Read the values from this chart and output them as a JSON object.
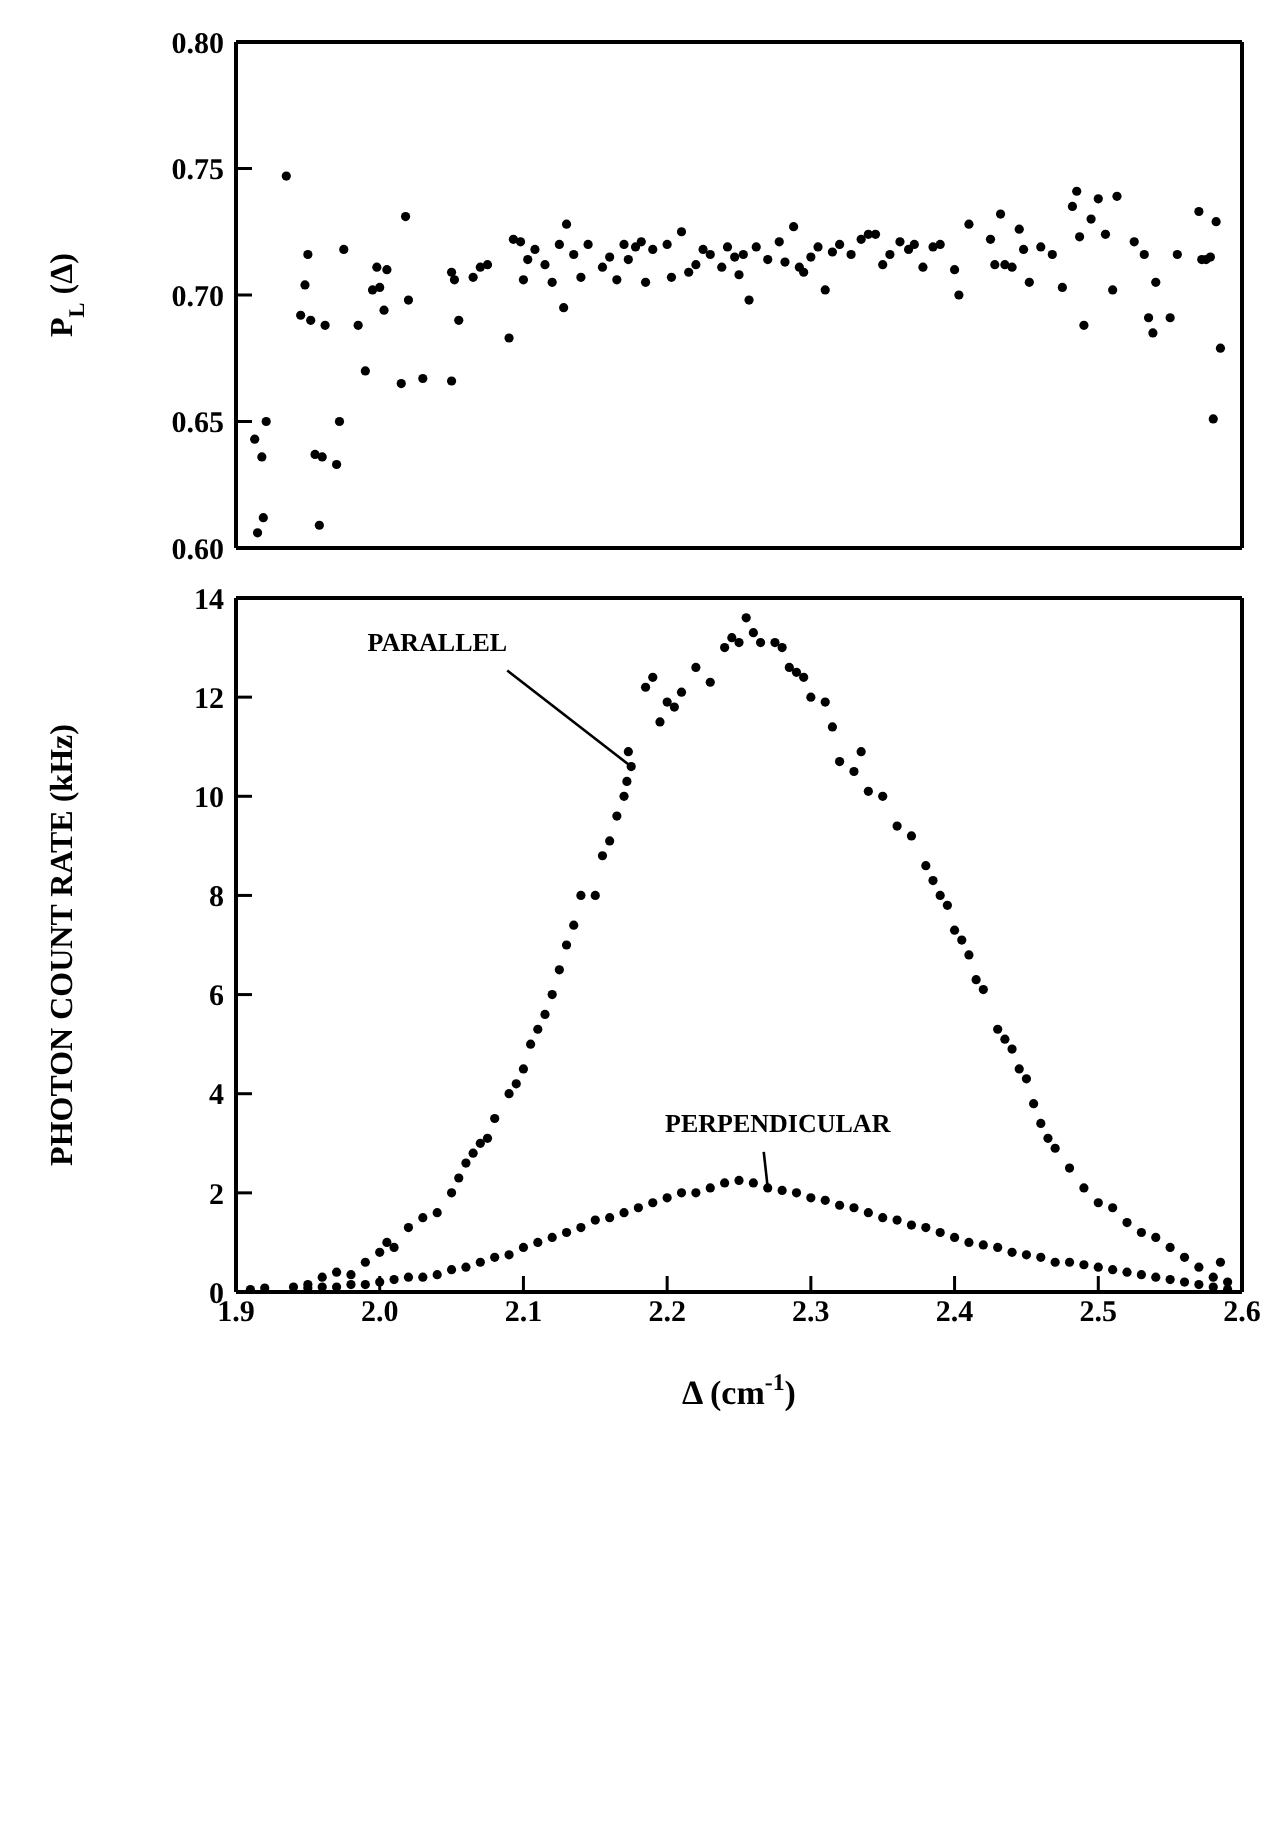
{
  "chart_data": [
    {
      "type": "scatter",
      "ylabel": "P$_{L}$ (Δ)",
      "xlim": [
        1.9,
        2.6
      ],
      "xticks": [
        1.9,
        2.0,
        2.1,
        2.2,
        2.3,
        2.4,
        2.5,
        2.6
      ],
      "ylim": [
        0.6,
        0.8
      ],
      "yticks": [
        {
          "value": 0.6,
          "label": "0.60"
        },
        0.65,
        {
          "value": 0.7,
          "label": "0.70"
        },
        0.75,
        {
          "value": 0.8,
          "label": "0.80"
        }
      ],
      "tick_labels": "y",
      "marker": "circle",
      "series": [
        {
          "color": "#000000",
          "x": [
            1.913,
            1.915,
            1.918,
            1.919,
            1.921,
            1.935,
            1.945,
            1.948,
            1.95,
            1.952,
            1.955,
            1.958,
            1.96,
            1.962,
            1.97,
            1.972,
            1.975,
            1.985,
            1.99,
            1.995,
            1.998,
            2.0,
            2.003,
            2.005,
            2.015,
            2.018,
            2.02,
            2.03,
            2.05,
            2.05,
            2.052,
            2.055,
            2.065,
            2.07,
            2.075,
            2.09,
            2.093,
            2.098,
            2.1,
            2.103,
            2.108,
            2.115,
            2.12,
            2.125,
            2.128,
            2.13,
            2.135,
            2.14,
            2.145,
            2.155,
            2.16,
            2.165,
            2.17,
            2.173,
            2.178,
            2.182,
            2.185,
            2.19,
            2.2,
            2.203,
            2.21,
            2.215,
            2.22,
            2.225,
            2.23,
            2.238,
            2.242,
            2.247,
            2.25,
            2.253,
            2.257,
            2.262,
            2.27,
            2.278,
            2.282,
            2.288,
            2.292,
            2.295,
            2.3,
            2.305,
            2.31,
            2.315,
            2.32,
            2.328,
            2.335,
            2.34,
            2.345,
            2.35,
            2.355,
            2.362,
            2.368,
            2.372,
            2.378,
            2.385,
            2.39,
            2.4,
            2.403,
            2.41,
            2.425,
            2.428,
            2.432,
            2.435,
            2.44,
            2.445,
            2.448,
            2.452,
            2.46,
            2.468,
            2.475,
            2.482,
            2.485,
            2.487,
            2.49,
            2.495,
            2.5,
            2.505,
            2.51,
            2.513,
            2.525,
            2.532,
            2.535,
            2.538,
            2.54,
            2.55,
            2.555,
            2.57,
            2.572,
            2.575,
            2.578,
            2.58,
            2.582,
            2.585
          ],
          "values": [
            0.643,
            0.606,
            0.636,
            0.612,
            0.65,
            0.747,
            0.692,
            0.704,
            0.716,
            0.69,
            0.637,
            0.609,
            0.636,
            0.688,
            0.633,
            0.65,
            0.718,
            0.688,
            0.67,
            0.702,
            0.711,
            0.703,
            0.694,
            0.71,
            0.665,
            0.731,
            0.698,
            0.667,
            0.666,
            0.709,
            0.706,
            0.69,
            0.707,
            0.711,
            0.712,
            0.683,
            0.722,
            0.721,
            0.706,
            0.714,
            0.718,
            0.712,
            0.705,
            0.72,
            0.695,
            0.728,
            0.716,
            0.707,
            0.72,
            0.711,
            0.715,
            0.706,
            0.72,
            0.714,
            0.719,
            0.721,
            0.705,
            0.718,
            0.72,
            0.707,
            0.725,
            0.709,
            0.712,
            0.718,
            0.716,
            0.711,
            0.719,
            0.715,
            0.708,
            0.716,
            0.698,
            0.719,
            0.714,
            0.721,
            0.713,
            0.727,
            0.711,
            0.709,
            0.715,
            0.719,
            0.702,
            0.717,
            0.72,
            0.716,
            0.722,
            0.724,
            0.724,
            0.712,
            0.716,
            0.721,
            0.718,
            0.72,
            0.711,
            0.719,
            0.72,
            0.71,
            0.7,
            0.728,
            0.722,
            0.712,
            0.732,
            0.712,
            0.711,
            0.726,
            0.718,
            0.705,
            0.719,
            0.716,
            0.703,
            0.735,
            0.741,
            0.723,
            0.688,
            0.73,
            0.738,
            0.724,
            0.702,
            0.739,
            0.721,
            0.716,
            0.691,
            0.685,
            0.705,
            0.691,
            0.716,
            0.733,
            0.714,
            0.714,
            0.715,
            0.651,
            0.729,
            0.679
          ]
        }
      ]
    },
    {
      "type": "scatter",
      "xlabel": "Δ (cm$^{-1}$)",
      "ylabel": "PHOTON COUNT RATE (kHz)",
      "xlim": [
        1.9,
        2.6
      ],
      "xticks": [
        1.9,
        {
          "value": 2.0,
          "label": "2.0"
        },
        2.1,
        2.2,
        2.3,
        2.4,
        2.5,
        2.6
      ],
      "ylim": [
        0,
        14
      ],
      "yticks": [
        0,
        2,
        4,
        6,
        8,
        10,
        12,
        14
      ],
      "marker": "circle",
      "annotations": [
        {
          "text": "PARALLEL",
          "x": 2.175,
          "y": 10.6
        },
        {
          "text": "PERPENDICULAR",
          "x": 2.27,
          "y": 2.1
        }
      ],
      "series": [
        {
          "color": "#000000",
          "x": [
            1.91,
            1.92,
            1.94,
            1.95,
            1.96,
            1.97,
            1.98,
            1.99,
            2.0,
            2.005,
            2.01,
            2.02,
            2.03,
            2.04,
            2.05,
            2.055,
            2.06,
            2.065,
            2.07,
            2.075,
            2.08,
            2.09,
            2.095,
            2.1,
            2.105,
            2.11,
            2.115,
            2.12,
            2.125,
            2.13,
            2.135,
            2.14,
            2.15,
            2.155,
            2.16,
            2.165,
            2.17,
            2.172,
            2.175,
            2.173,
            2.185,
            2.19,
            2.195,
            2.2,
            2.205,
            2.21,
            2.22,
            2.23,
            2.24,
            2.245,
            2.25,
            2.255,
            2.26,
            2.265,
            2.275,
            2.28,
            2.285,
            2.29,
            2.295,
            2.3,
            2.31,
            2.315,
            2.32,
            2.33,
            2.335,
            2.34,
            2.35,
            2.36,
            2.37,
            2.38,
            2.385,
            2.39,
            2.395,
            2.4,
            2.405,
            2.41,
            2.415,
            2.42,
            2.43,
            2.435,
            2.44,
            2.445,
            2.45,
            2.455,
            2.46,
            2.465,
            2.47,
            2.48,
            2.49,
            2.5,
            2.51,
            2.52,
            2.53,
            2.54,
            2.55,
            2.56,
            2.57,
            2.58,
            2.585,
            2.59
          ],
          "values": [
            0.05,
            0.08,
            0.1,
            0.15,
            0.3,
            0.4,
            0.35,
            0.6,
            0.8,
            1.0,
            0.9,
            1.3,
            1.5,
            1.6,
            2.0,
            2.3,
            2.6,
            2.8,
            3.0,
            3.1,
            3.5,
            4.0,
            4.2,
            4.5,
            5.0,
            5.3,
            5.6,
            6.0,
            6.5,
            7.0,
            7.4,
            8.0,
            8.0,
            8.8,
            9.1,
            9.6,
            10.0,
            10.3,
            10.6,
            10.9,
            12.2,
            12.4,
            11.5,
            11.9,
            11.8,
            12.1,
            12.6,
            12.3,
            13.0,
            13.2,
            13.1,
            13.6,
            13.3,
            13.1,
            13.1,
            13.0,
            12.6,
            12.5,
            12.4,
            12.0,
            11.9,
            11.4,
            10.7,
            10.5,
            10.9,
            10.1,
            10.0,
            9.4,
            9.2,
            8.6,
            8.3,
            8.0,
            7.8,
            7.3,
            7.1,
            6.8,
            6.3,
            6.1,
            5.3,
            5.1,
            4.9,
            4.5,
            4.3,
            3.8,
            3.4,
            3.1,
            2.9,
            2.5,
            2.1,
            1.8,
            1.7,
            1.4,
            1.2,
            1.1,
            0.9,
            0.7,
            0.5,
            0.3,
            0.6,
            0.2
          ]
        },
        {
          "color": "#000000",
          "x": [
            1.95,
            1.96,
            1.97,
            1.98,
            1.99,
            2.0,
            2.01,
            2.02,
            2.03,
            2.04,
            2.05,
            2.06,
            2.07,
            2.08,
            2.09,
            2.1,
            2.11,
            2.12,
            2.13,
            2.14,
            2.15,
            2.16,
            2.17,
            2.18,
            2.19,
            2.2,
            2.21,
            2.22,
            2.23,
            2.24,
            2.25,
            2.26,
            2.27,
            2.28,
            2.29,
            2.3,
            2.31,
            2.32,
            2.33,
            2.34,
            2.35,
            2.36,
            2.37,
            2.38,
            2.39,
            2.4,
            2.41,
            2.42,
            2.43,
            2.44,
            2.45,
            2.46,
            2.47,
            2.48,
            2.49,
            2.5,
            2.51,
            2.52,
            2.53,
            2.54,
            2.55,
            2.56,
            2.57,
            2.58,
            2.59
          ],
          "values": [
            0.08,
            0.1,
            0.1,
            0.15,
            0.15,
            0.2,
            0.25,
            0.3,
            0.3,
            0.35,
            0.45,
            0.5,
            0.6,
            0.7,
            0.75,
            0.9,
            1.0,
            1.1,
            1.2,
            1.3,
            1.45,
            1.5,
            1.6,
            1.7,
            1.8,
            1.9,
            2.0,
            2.0,
            2.1,
            2.2,
            2.25,
            2.2,
            2.1,
            2.05,
            2.0,
            1.9,
            1.85,
            1.75,
            1.7,
            1.6,
            1.5,
            1.45,
            1.35,
            1.3,
            1.2,
            1.1,
            1.0,
            0.95,
            0.9,
            0.8,
            0.75,
            0.7,
            0.6,
            0.6,
            0.55,
            0.5,
            0.45,
            0.4,
            0.35,
            0.3,
            0.25,
            0.2,
            0.15,
            0.1,
            0.05
          ]
        }
      ]
    }
  ]
}
